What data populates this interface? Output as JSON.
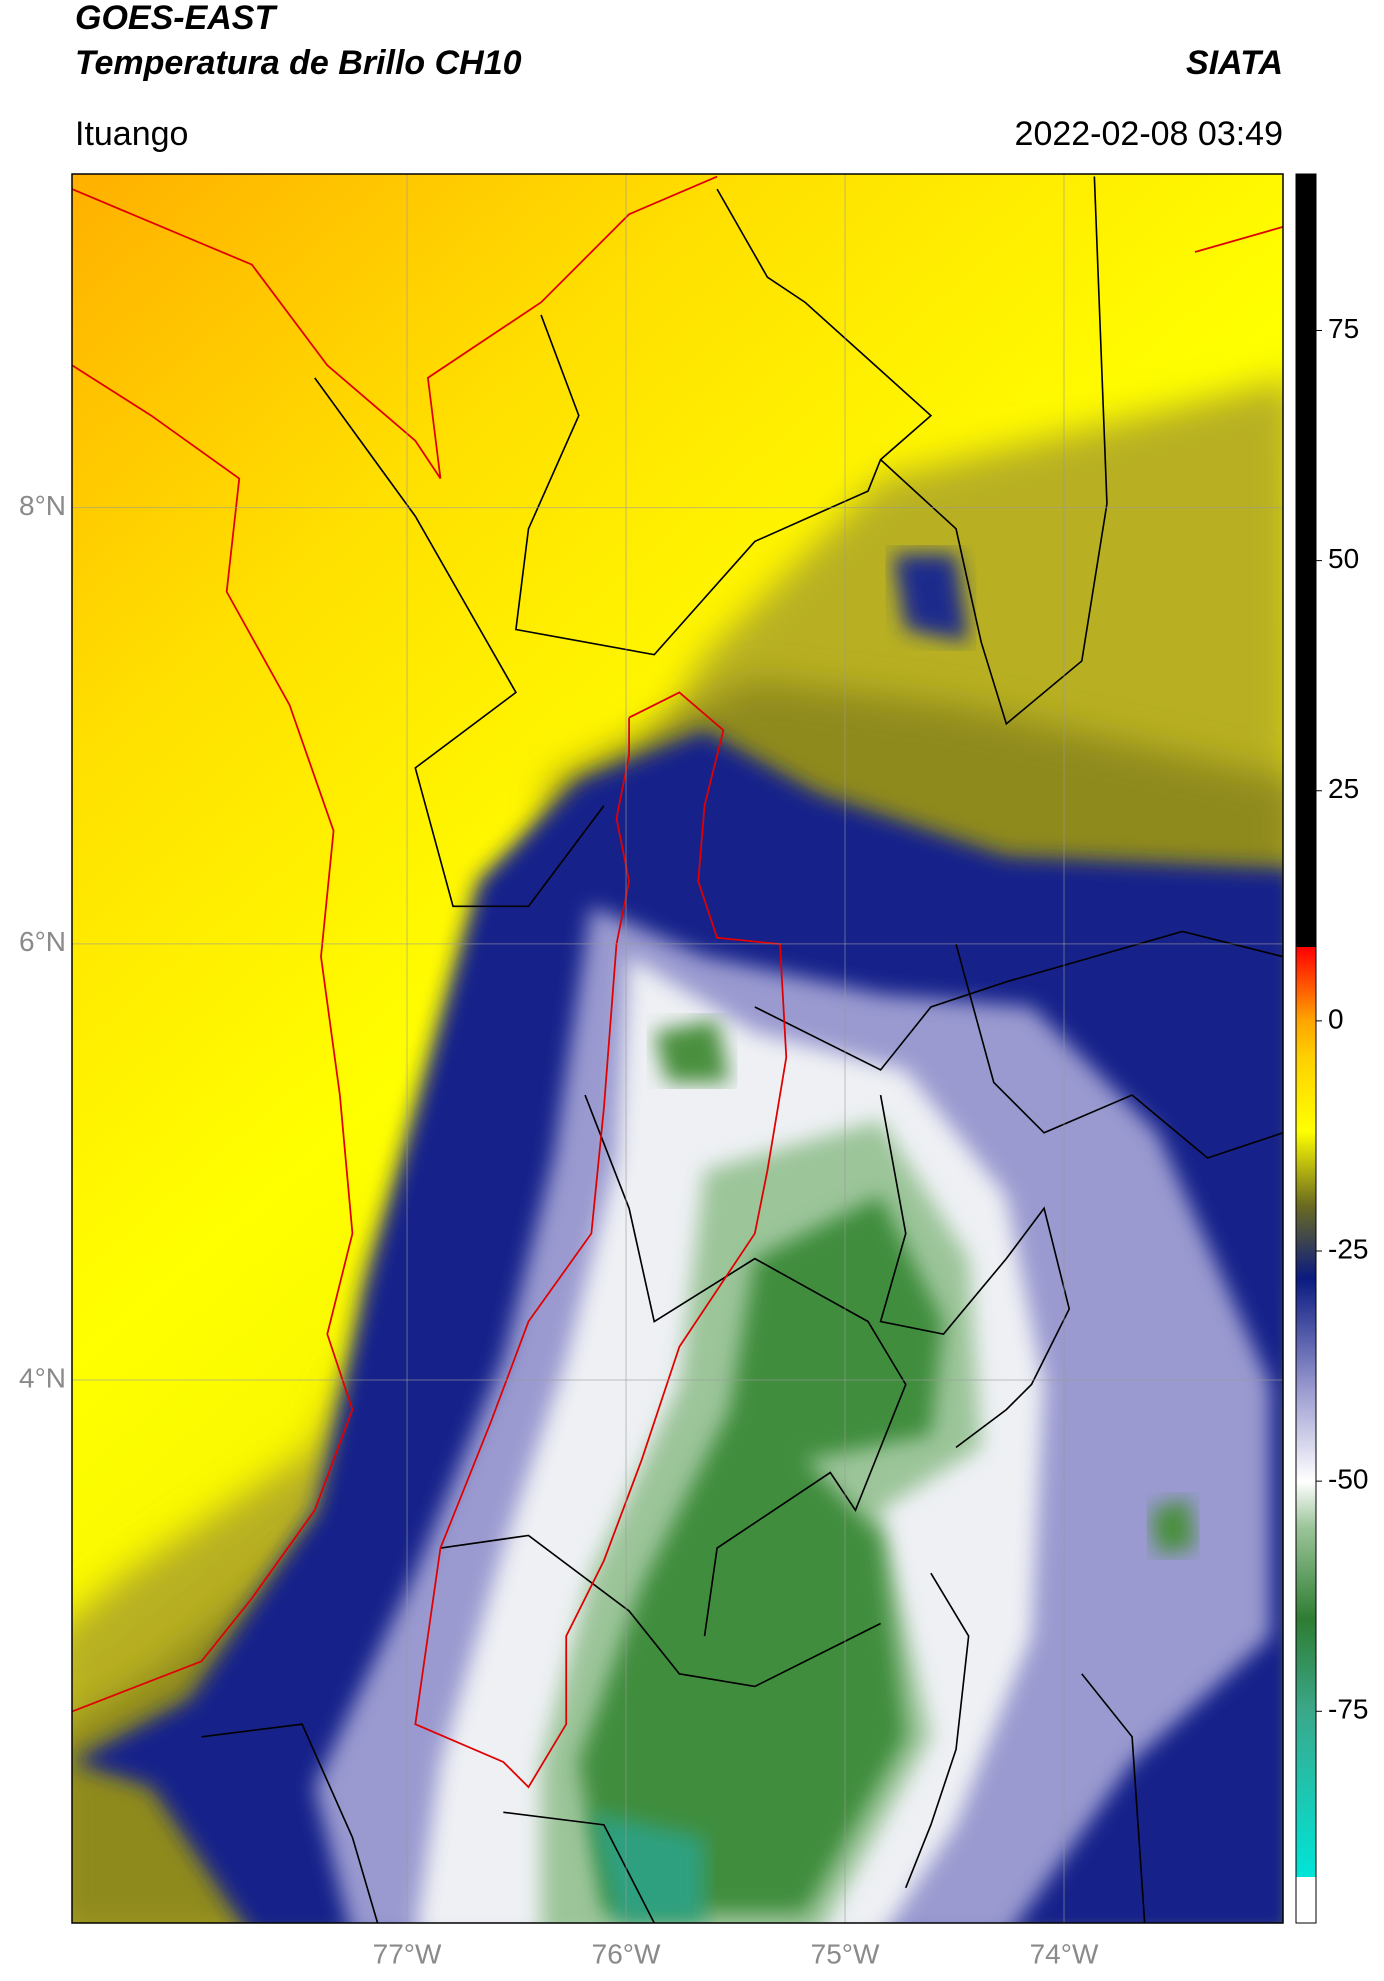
{
  "header": {
    "title": "GOES-EAST",
    "subtitle": "Temperatura de Brillo CH10",
    "source": "SIATA",
    "location": "Ituango",
    "datetime": "2022-02-08 03:49"
  },
  "map": {
    "latlim": [
      1.51,
      9.53
    ],
    "lonlim": [
      -78.53,
      -73.0
    ],
    "lat_ticks": [
      {
        "value": 8,
        "label": "8°N"
      },
      {
        "value": 6,
        "label": "6°N"
      },
      {
        "value": 4,
        "label": "4°N"
      }
    ],
    "lon_ticks": [
      {
        "value": -77,
        "label": "77°W"
      },
      {
        "value": -76,
        "label": "76°W"
      },
      {
        "value": -75,
        "label": "75°W"
      },
      {
        "value": -74,
        "label": "74°W"
      }
    ],
    "grid": true
  },
  "colorbar": {
    "lim": [
      -98,
      92
    ],
    "ticks": [
      75,
      50,
      25,
      0,
      -25,
      -50,
      -75
    ],
    "colormap": [
      {
        "value": -98,
        "color": "#ffffff"
      },
      {
        "value": -93,
        "color": "#ffffff"
      },
      {
        "value": -93,
        "color": "#00e5d8"
      },
      {
        "value": -75,
        "color": "#3aa88a"
      },
      {
        "value": -65,
        "color": "#2e7d32"
      },
      {
        "value": -55,
        "color": "#9cc59a"
      },
      {
        "value": -50,
        "color": "#ffffff"
      },
      {
        "value": -40,
        "color": "#9a9ad0"
      },
      {
        "value": -28,
        "color": "#0a1a80"
      },
      {
        "value": -20,
        "color": "#6b6b20"
      },
      {
        "value": -12,
        "color": "#ffff00"
      },
      {
        "value": -4,
        "color": "#ffd000"
      },
      {
        "value": 0,
        "color": "#ffa500"
      },
      {
        "value": 8,
        "color": "#ff0000"
      },
      {
        "value": 8,
        "color": "#000000"
      },
      {
        "value": 92,
        "color": "#000000"
      }
    ]
  }
}
